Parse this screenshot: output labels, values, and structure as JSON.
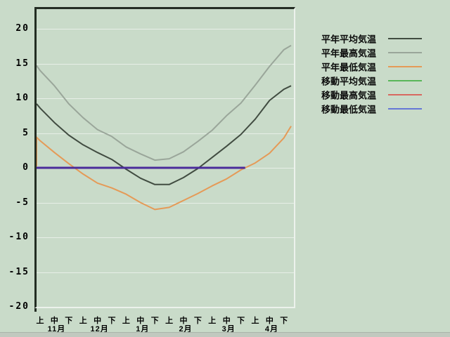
{
  "page": {
    "background": "#c9dbc9",
    "bottom_strip_color": "#c1c9bf"
  },
  "legend": {
    "items": [
      {
        "label": "平年平均気温",
        "color": "#414c41"
      },
      {
        "label": "平年最高気温",
        "color": "#9aa69a"
      },
      {
        "label": "平年最低気温",
        "color": "#e59a57"
      },
      {
        "label": "移動平均気温",
        "color": "#58b658"
      },
      {
        "label": "移動最高気温",
        "color": "#d86860"
      },
      {
        "label": "移動最低気温",
        "color": "#6577d6"
      }
    ]
  },
  "chart_data": {
    "type": "line",
    "title": "",
    "xlabel": "",
    "ylabel": "",
    "ylim": [
      -20,
      20
    ],
    "grid": "horizontal-only",
    "legend_position": "right",
    "y_tick_labels": [
      "20",
      "15",
      "10",
      "5",
      "0",
      "-5",
      "-10",
      "-15",
      "-20"
    ],
    "y_tick_values": [
      20,
      15,
      10,
      5,
      0,
      -5,
      -10,
      -15,
      -20
    ],
    "x_months": [
      "11月",
      "12月",
      "1月",
      "2月",
      "3月",
      "4月"
    ],
    "x_periods": [
      "上",
      "中",
      "下"
    ],
    "colors": {
      "frame_dark": "#232d23",
      "frame_light": "#ecf2ec",
      "gridline": "#e7efe7",
      "moving_overlap_rendered": "#4a2b9b"
    },
    "series": [
      {
        "name": "平年平均気温",
        "color": "#414c41",
        "width": 2,
        "points": [
          [
            -0.35,
            9.2
          ],
          [
            0,
            8.6
          ],
          [
            1,
            6.5
          ],
          [
            2,
            4.7
          ],
          [
            3,
            3.3
          ],
          [
            4,
            2.2
          ],
          [
            5,
            1.2
          ],
          [
            6,
            -0.2
          ],
          [
            7,
            -1.5
          ],
          [
            8,
            -2.4
          ],
          [
            9,
            -2.4
          ],
          [
            10,
            -1.4
          ],
          [
            11,
            -0.1
          ],
          [
            12,
            1.5
          ],
          [
            13,
            3.1
          ],
          [
            14,
            4.8
          ],
          [
            15,
            7.0
          ],
          [
            16,
            9.7
          ],
          [
            17,
            11.3
          ],
          [
            17.5,
            11.8
          ]
        ]
      },
      {
        "name": "平年最高気温",
        "color": "#9aa69a",
        "width": 2,
        "points": [
          [
            -0.35,
            14.7
          ],
          [
            0,
            14.0
          ],
          [
            1,
            11.8
          ],
          [
            2,
            9.2
          ],
          [
            3,
            7.2
          ],
          [
            4,
            5.5
          ],
          [
            5,
            4.5
          ],
          [
            6,
            3.0
          ],
          [
            7,
            2.0
          ],
          [
            8,
            1.1
          ],
          [
            9,
            1.3
          ],
          [
            10,
            2.3
          ],
          [
            11,
            3.8
          ],
          [
            12,
            5.4
          ],
          [
            13,
            7.5
          ],
          [
            14,
            9.3
          ],
          [
            15,
            11.9
          ],
          [
            16,
            14.6
          ],
          [
            17,
            17.0
          ],
          [
            17.5,
            17.6
          ]
        ]
      },
      {
        "name": "平年最低気温",
        "color": "#e59a57",
        "width": 2,
        "points": [
          [
            -0.35,
            0.2
          ],
          [
            -0.3,
            4.4
          ],
          [
            0,
            3.9
          ],
          [
            1,
            2.2
          ],
          [
            2,
            0.6
          ],
          [
            3,
            -0.9
          ],
          [
            4,
            -2.2
          ],
          [
            5,
            -2.9
          ],
          [
            6,
            -3.8
          ],
          [
            7,
            -5.0
          ],
          [
            8,
            -6.0
          ],
          [
            9,
            -5.7
          ],
          [
            10,
            -4.7
          ],
          [
            11,
            -3.7
          ],
          [
            12,
            -2.6
          ],
          [
            13,
            -1.6
          ],
          [
            14,
            -0.3
          ],
          [
            15,
            0.7
          ],
          [
            16,
            2.1
          ],
          [
            17,
            4.3
          ],
          [
            17.5,
            6.0
          ]
        ]
      },
      {
        "name": "移動平均気温",
        "color": "#58b658",
        "width": 2,
        "flat_overlap": true,
        "points": [
          [
            -0.35,
            0
          ],
          [
            14.3,
            0
          ]
        ]
      },
      {
        "name": "移動最高気温",
        "color": "#d86860",
        "width": 2,
        "flat_overlap": true,
        "points": [
          [
            -0.35,
            0
          ],
          [
            14.3,
            0
          ]
        ]
      },
      {
        "name": "移動最低気温",
        "color": "#6577d6",
        "width": 3,
        "flat_overlap": true,
        "points": [
          [
            -0.35,
            0
          ],
          [
            14.3,
            0
          ]
        ]
      }
    ]
  }
}
